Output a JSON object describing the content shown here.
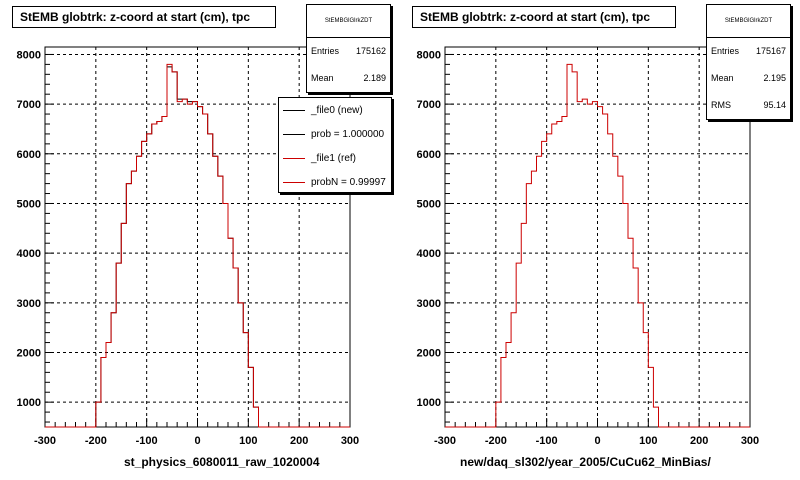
{
  "chart_data": [
    {
      "type": "histogram",
      "title": "StEMB globtrk: z-coord at start (cm), tpc",
      "xlabel": "st_physics_6080011_raw_1020004",
      "ylabel": "",
      "xlim": [
        -300,
        300
      ],
      "ylim": [
        500,
        8150
      ],
      "xticks": [
        -300,
        -200,
        -100,
        0,
        100,
        200,
        300
      ],
      "yticks": [
        1000,
        2000,
        3000,
        4000,
        5000,
        6000,
        7000,
        8000
      ],
      "grid": true,
      "bin_width": 10,
      "bin_start": -200,
      "stats": {
        "name": "StEMBGlGlrkZDT",
        "rows": [
          {
            "label": "Entries",
            "value": "175162"
          },
          {
            "label": "Mean",
            "value": "2.189"
          }
        ]
      },
      "legend": {
        "placement": "top-right",
        "entries": [
          {
            "label": "_file0 (new)",
            "color": "#000000"
          },
          {
            "label": "prob = 1.000000",
            "color": "#000000"
          },
          {
            "label": "_file1 (ref)",
            "color": "#cc0000"
          },
          {
            "label": "probN = 0.99997",
            "color": "#cc0000"
          }
        ]
      },
      "series": [
        {
          "name": "_file0 (new)",
          "color": "#000000",
          "values": [
            1000,
            1900,
            2200,
            2800,
            3800,
            4600,
            5400,
            5650,
            5950,
            6250,
            6400,
            6600,
            6650,
            6750,
            7750,
            7650,
            7100,
            7100,
            7050,
            7050,
            6950,
            6800,
            6400,
            5950,
            5550,
            5000,
            4300,
            3700,
            3000,
            2400,
            1700,
            900
          ]
        },
        {
          "name": "_file1 (ref)",
          "color": "#cc0000",
          "values": [
            1000,
            1900,
            2200,
            2800,
            3800,
            4600,
            5400,
            5650,
            5950,
            6250,
            6400,
            6600,
            6650,
            6750,
            7800,
            7650,
            7050,
            7100,
            7000,
            7050,
            6950,
            6800,
            6400,
            5950,
            5550,
            5000,
            4300,
            3700,
            3000,
            2400,
            1700,
            900
          ]
        }
      ]
    },
    {
      "type": "histogram",
      "title": "StEMB globtrk: z-coord at start (cm), tpc",
      "xlabel": "new/daq_sl302/year_2005/CuCu62_MinBias/",
      "ylabel": "",
      "xlim": [
        -300,
        300
      ],
      "ylim": [
        500,
        8150
      ],
      "xticks": [
        -300,
        -200,
        -100,
        0,
        100,
        200,
        300
      ],
      "yticks": [
        1000,
        2000,
        3000,
        4000,
        5000,
        6000,
        7000,
        8000
      ],
      "grid": true,
      "bin_width": 10,
      "bin_start": -200,
      "stats": {
        "name": "StEMBGlGlrkZDT",
        "rows": [
          {
            "label": "Entries",
            "value": "175167"
          },
          {
            "label": "Mean",
            "value": "2.195"
          },
          {
            "label": "RMS",
            "value": "95.14"
          }
        ]
      },
      "series": [
        {
          "name": "",
          "color": "#cc0000",
          "values": [
            1000,
            1900,
            2200,
            2800,
            3800,
            4600,
            5400,
            5650,
            5950,
            6250,
            6400,
            6600,
            6650,
            6750,
            7800,
            7650,
            7050,
            7100,
            7000,
            7050,
            6950,
            6800,
            6400,
            5950,
            5550,
            5000,
            4300,
            3700,
            3000,
            2400,
            1700,
            900
          ]
        }
      ]
    }
  ]
}
